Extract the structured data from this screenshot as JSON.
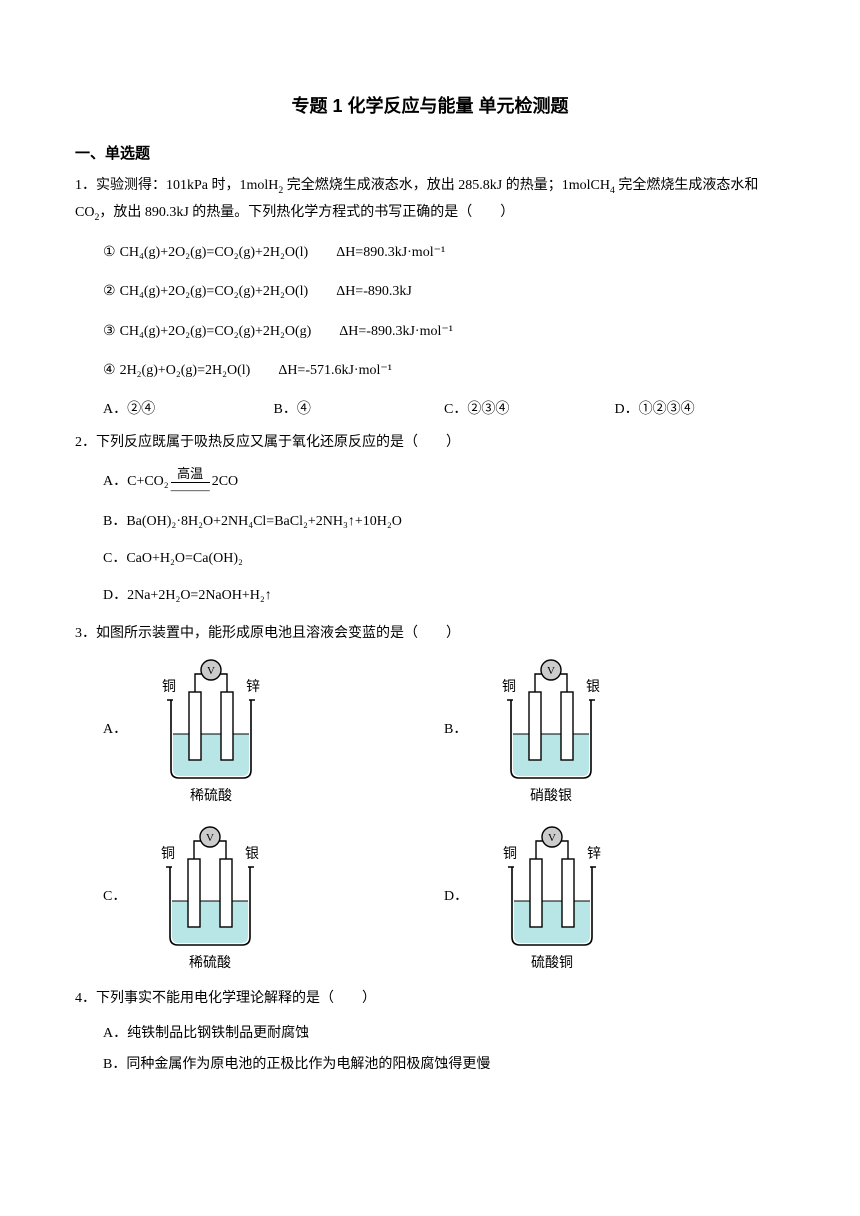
{
  "title": "专题 1  化学反应与能量  单元检测题",
  "section1": "一、单选题",
  "q1": {
    "num": "1．",
    "text1": "实验测得：101kPa 时，1molH",
    "text2": " 完全燃烧生成液态水，放出 285.8kJ 的热量；1molCH",
    "text3": " 完全燃烧生成液态水和 CO",
    "text4": "，放出 890.3kJ 的热量。下列热化学方程式的书写正确的是（　　）",
    "eq1_num": "①",
    "eq1_f": "CH₄(g)+2O₂(g)=CO₂(g)+2H₂O(l)",
    "eq1_d": "ΔH=890.3kJ·mol⁻¹",
    "eq2_num": "②",
    "eq2_f": "CH₄(g)+2O₂(g)=CO₂(g)+2H₂O(l)",
    "eq2_d": "ΔH=-890.3kJ",
    "eq3_num": "③",
    "eq3_f": "CH₄(g)+2O₂(g)=CO₂(g)+2H₂O(g)",
    "eq3_d": "ΔH=-890.3kJ·mol⁻¹",
    "eq4_num": "④",
    "eq4_f": "2H₂(g)+O₂(g)=2H₂O(l)",
    "eq4_d": "ΔH=-571.6kJ·mol⁻¹",
    "optA": "A．②④",
    "optB": "B．④",
    "optC": "C．②③④",
    "optD": "D．①②③④"
  },
  "q2": {
    "num": "2．",
    "text": "下列反应既属于吸热反应又属于氧化还原反应的是（　　）",
    "optA_pre": "A．C+CO₂",
    "optA_top": "高温",
    "optA_bottom": "———",
    "optA_post": "2CO",
    "optB": "B．Ba(OH)₂·8H₂O+2NH₄Cl=BaCl₂+2NH₃↑+10H₂O",
    "optC": "C．CaO+H₂O=Ca(OH)₂",
    "optD": "D．2Na+2H₂O=2NaOH+H₂↑"
  },
  "q3": {
    "num": "3．",
    "text": "如图所示装置中，能形成原电池且溶液会变蓝的是（　　）",
    "cells": [
      {
        "label": "A．",
        "left": "铜",
        "right": "锌",
        "solution": "稀硫酸"
      },
      {
        "label": "B．",
        "left": "铜",
        "right": "银",
        "solution": "硝酸银"
      },
      {
        "label": "C．",
        "left": "铜",
        "right": "银",
        "solution": "稀硫酸"
      },
      {
        "label": "D．",
        "left": "铜",
        "right": "锌",
        "solution": "硫酸铜"
      }
    ],
    "svg_colors": {
      "stroke": "#000000",
      "liquid": "#b8e6e6",
      "meter_fill": "#cccccc"
    }
  },
  "q4": {
    "num": "4．",
    "text": "下列事实不能用电化学理论解释的是（　　）",
    "optA": "A．纯铁制品比钢铁制品更耐腐蚀",
    "optB": "B．同种金属作为原电池的正极比作为电解池的阳极腐蚀得更慢"
  }
}
